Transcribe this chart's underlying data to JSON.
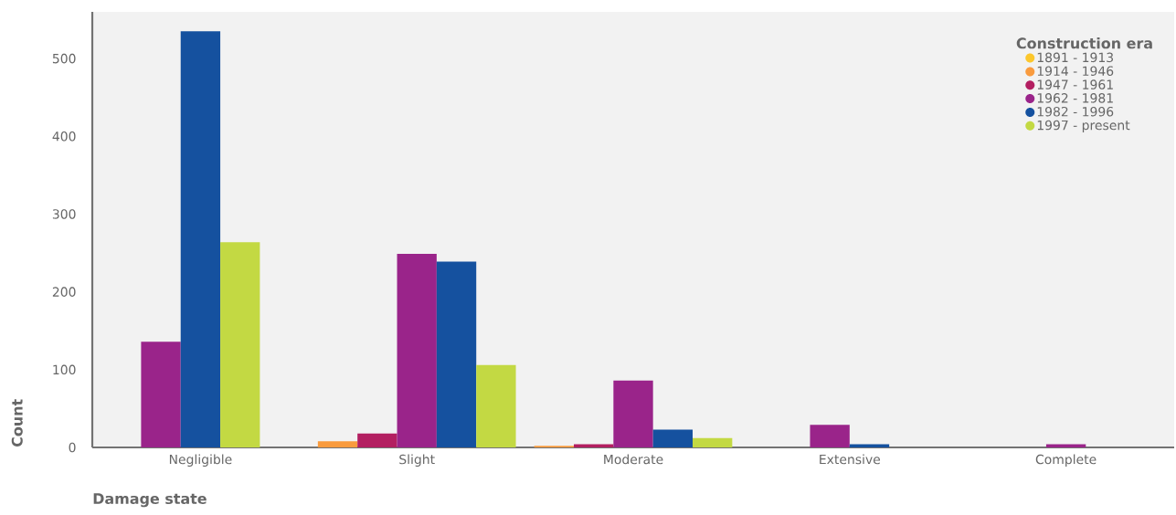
{
  "chart_data": {
    "type": "bar",
    "xlabel": "Damage state",
    "ylabel": "Count",
    "legend_title": "Construction era",
    "categories": [
      "Negligible",
      "Slight",
      "Moderate",
      "Extensive",
      "Complete"
    ],
    "series": [
      {
        "name": "1891 - 1913",
        "color": "#fcc72c",
        "values": [
          null,
          null,
          null,
          null,
          null
        ]
      },
      {
        "name": "1914 - 1946",
        "color": "#f99b3e",
        "values": [
          null,
          8,
          2,
          null,
          null
        ]
      },
      {
        "name": "1947 - 1961",
        "color": "#b31f61",
        "values": [
          null,
          18,
          4,
          null,
          null
        ]
      },
      {
        "name": "1962 - 1981",
        "color": "#9a248a",
        "values": [
          136,
          249,
          86,
          29,
          4
        ]
      },
      {
        "name": "1982 - 1996",
        "color": "#15519f",
        "values": [
          535,
          239,
          23,
          4,
          null
        ]
      },
      {
        "name": "1997 - present",
        "color": "#c3d943",
        "values": [
          264,
          106,
          12,
          null,
          null
        ]
      }
    ],
    "ylim": [
      0,
      560
    ],
    "yticks": [
      0,
      100,
      200,
      300,
      400,
      500
    ],
    "grid": false,
    "legend": "top right"
  }
}
